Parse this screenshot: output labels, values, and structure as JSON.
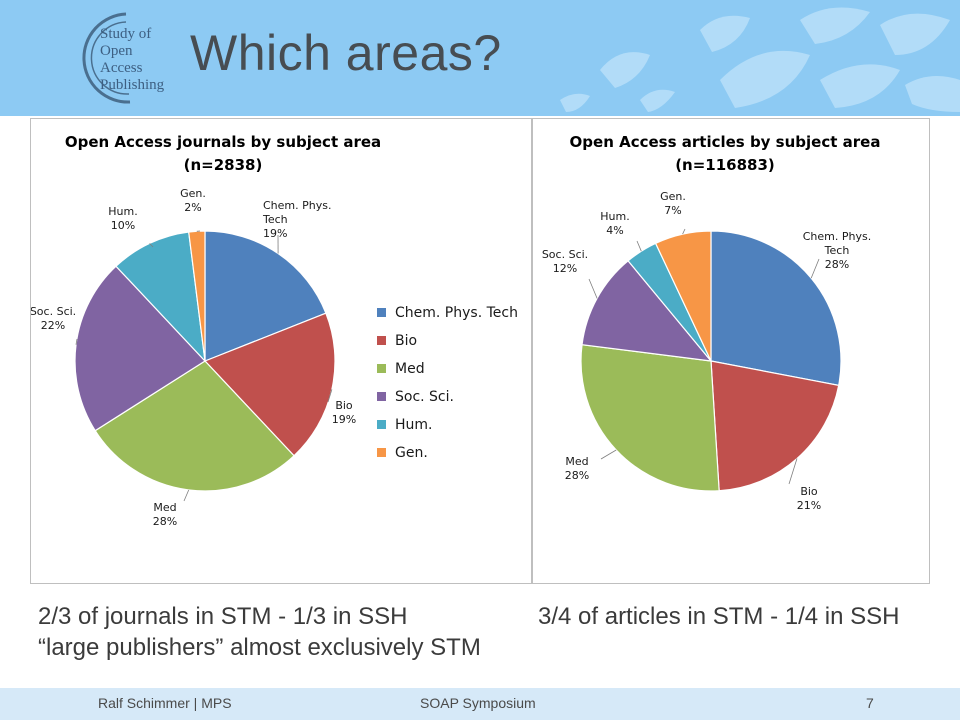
{
  "slide": {
    "title": "Which areas?",
    "logo_lines": [
      "Study of",
      "Open",
      "Access",
      "Publishing"
    ]
  },
  "colors": {
    "header_bg": "#8dcaf3",
    "footer_bg": "#d6e9f8",
    "title_text": "#474d52"
  },
  "chart_data": [
    {
      "type": "pie",
      "title": [
        "Open Access journals by subject area",
        "(n=2838)"
      ],
      "labels": [
        "Chem. Phys. Tech",
        "Bio",
        "Med",
        "Soc. Sci.",
        "Hum.",
        "Gen."
      ],
      "slice_labels": [
        [
          "Chem. Phys.",
          "Tech",
          "19%"
        ],
        [
          "Bio",
          "19%"
        ],
        [
          "Med",
          "28%"
        ],
        [
          "Soc. Sci.",
          "22%"
        ],
        [
          "Hum.",
          "10%"
        ],
        [
          "Gen.",
          "2%"
        ]
      ],
      "values": [
        19,
        19,
        28,
        22,
        10,
        2
      ],
      "colors": [
        "#4f81bd",
        "#c0504d",
        "#9bbb59",
        "#8064a2",
        "#4bacc6",
        "#f79646"
      ],
      "legend": {
        "position": "right",
        "entries": [
          "Chem. Phys. Tech",
          "Bio",
          "Med",
          "Soc. Sci.",
          "Hum.",
          "Gen."
        ]
      }
    },
    {
      "type": "pie",
      "title": [
        "Open Access articles by subject area",
        "(n=116883)"
      ],
      "labels": [
        "Chem. Phys. Tech",
        "Bio",
        "Med",
        "Soc. Sci.",
        "Hum.",
        "Gen."
      ],
      "slice_labels": [
        [
          "Chem. Phys.",
          "Tech",
          "28%"
        ],
        [
          "Bio",
          "21%"
        ],
        [
          "Med",
          "28%"
        ],
        [
          "Soc. Sci.",
          "12%"
        ],
        [
          "Hum.",
          "4%"
        ],
        [
          "Gen.",
          "7%"
        ]
      ],
      "values": [
        28,
        21,
        28,
        12,
        4,
        7
      ],
      "colors": [
        "#4f81bd",
        "#c0504d",
        "#9bbb59",
        "#8064a2",
        "#4bacc6",
        "#f79646"
      ],
      "legend": null
    }
  ],
  "captions": {
    "left_line1": "2/3 of journals in STM - 1/3 in SSH",
    "left_line2": "“large publishers” almost exclusively STM",
    "right_line1": "3/4 of articles in STM - 1/4 in SSH"
  },
  "footer": {
    "author": "Ralf Schimmer | MPS",
    "event": "SOAP Symposium",
    "page_number": "7"
  }
}
